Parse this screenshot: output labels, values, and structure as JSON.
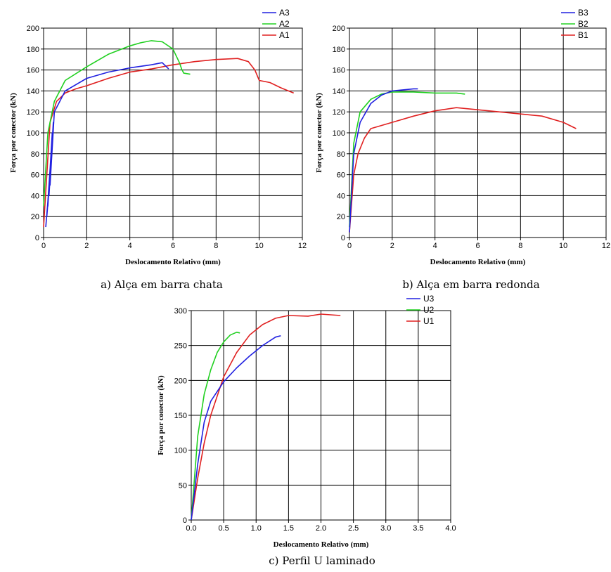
{
  "chart_data": [
    {
      "type": "line",
      "caption": "a) Alça em barra chata",
      "xlabel": "Deslocamento Relativo (mm)",
      "ylabel": "Força por conector (kN)",
      "xlim": [
        0,
        12
      ],
      "ylim": [
        0,
        200
      ],
      "xticks": [
        "0",
        "2",
        "4",
        "6",
        "8",
        "10",
        "12"
      ],
      "yticks": [
        "0",
        "20",
        "40",
        "60",
        "80",
        "100",
        "120",
        "140",
        "160",
        "180",
        "200"
      ],
      "grid": true,
      "legend_position": "top-right, outside",
      "series": [
        {
          "name": "A3",
          "color": "#2020e0",
          "x": [
            0.1,
            0.3,
            0.15,
            0.35,
            0.2,
            0.4,
            0.25,
            0.45,
            0.3,
            0.5,
            1.0,
            2.0,
            3.0,
            4.0,
            5.0,
            5.5,
            5.8
          ],
          "y": [
            10,
            60,
            20,
            80,
            30,
            100,
            40,
            110,
            50,
            120,
            140,
            152,
            158,
            162,
            165,
            167,
            161
          ]
        },
        {
          "name": "A2",
          "color": "#20d020",
          "x": [
            0,
            0.2,
            0.5,
            1.0,
            2.0,
            3.0,
            4.0,
            4.5,
            5.0,
            5.5,
            6.0,
            6.3,
            6.4,
            6.5,
            6.8
          ],
          "y": [
            30,
            100,
            130,
            150,
            163,
            175,
            183,
            186,
            188,
            187,
            180,
            167,
            161,
            157,
            156
          ]
        },
        {
          "name": "A1",
          "color": "#e02020",
          "x": [
            0,
            0.3,
            0.6,
            1.0,
            1.5,
            2.0,
            3.0,
            4.0,
            5.0,
            6.0,
            7.0,
            8.0,
            9.0,
            9.5,
            9.8,
            10.0,
            10.5,
            11.0,
            11.6
          ],
          "y": [
            10,
            110,
            130,
            138,
            142,
            145,
            152,
            158,
            161,
            165,
            168,
            170,
            171,
            168,
            160,
            150,
            148,
            143,
            138
          ]
        }
      ]
    },
    {
      "type": "line",
      "caption": "b) Alça em barra redonda",
      "xlabel": "Deslocamento Relativo (mm)",
      "ylabel": "Força por conector (kN)",
      "xlim": [
        0,
        12
      ],
      "ylim": [
        0,
        200
      ],
      "xticks": [
        "0",
        "2",
        "4",
        "6",
        "8",
        "10",
        "12"
      ],
      "yticks": [
        "0",
        "20",
        "40",
        "60",
        "80",
        "100",
        "120",
        "140",
        "160",
        "180",
        "200"
      ],
      "grid": true,
      "legend_position": "top-right, outside",
      "series": [
        {
          "name": "B3",
          "color": "#2020e0",
          "x": [
            0,
            0.2,
            0.5,
            1.0,
            1.5,
            2.0,
            2.5,
            3.0,
            3.2
          ],
          "y": [
            5,
            80,
            110,
            128,
            136,
            140,
            141,
            142,
            142
          ]
        },
        {
          "name": "B2",
          "color": "#20d020",
          "x": [
            0,
            0.2,
            0.5,
            1.0,
            1.5,
            2.0,
            3.0,
            4.0,
            5.0,
            5.4
          ],
          "y": [
            10,
            90,
            120,
            132,
            137,
            139,
            139,
            138,
            138,
            137
          ]
        },
        {
          "name": "B1",
          "color": "#e02020",
          "x": [
            0,
            0.2,
            0.4,
            0.7,
            1.0,
            2.0,
            3.0,
            4.0,
            5.0,
            6.0,
            7.0,
            8.0,
            9.0,
            10.0,
            10.6
          ],
          "y": [
            5,
            60,
            80,
            95,
            104,
            110,
            116,
            121,
            124,
            122,
            120,
            118,
            116,
            110,
            104
          ]
        }
      ]
    },
    {
      "type": "line",
      "caption": "c) Perfil U laminado",
      "xlabel": "Deslocamento Relativo (mm)",
      "ylabel": "Força por conector (kN)",
      "xlim": [
        0,
        4
      ],
      "ylim": [
        0,
        300
      ],
      "xticks": [
        "0.0",
        "0.5",
        "1.0",
        "1.5",
        "2.0",
        "2.5",
        "3.0",
        "3.5",
        "4.0"
      ],
      "yticks": [
        "0",
        "50",
        "100",
        "150",
        "200",
        "250",
        "300"
      ],
      "grid": true,
      "legend_position": "top-right, outside",
      "series": [
        {
          "name": "U3",
          "color": "#2020e0",
          "x": [
            0,
            0.1,
            0.2,
            0.3,
            0.5,
            0.7,
            0.9,
            1.1,
            1.3,
            1.38
          ],
          "y": [
            0,
            80,
            140,
            170,
            198,
            218,
            235,
            250,
            262,
            264
          ]
        },
        {
          "name": "U2",
          "color": "#20d020",
          "x": [
            0,
            0.1,
            0.2,
            0.3,
            0.4,
            0.5,
            0.6,
            0.7,
            0.75
          ],
          "y": [
            0,
            120,
            180,
            215,
            240,
            255,
            265,
            269,
            268
          ]
        },
        {
          "name": "U1",
          "color": "#e02020",
          "x": [
            0,
            0.1,
            0.2,
            0.3,
            0.5,
            0.7,
            0.9,
            1.1,
            1.3,
            1.5,
            1.8,
            2.0,
            2.3
          ],
          "y": [
            0,
            60,
            110,
            150,
            205,
            240,
            265,
            280,
            289,
            293,
            292,
            295,
            293
          ]
        }
      ]
    }
  ]
}
